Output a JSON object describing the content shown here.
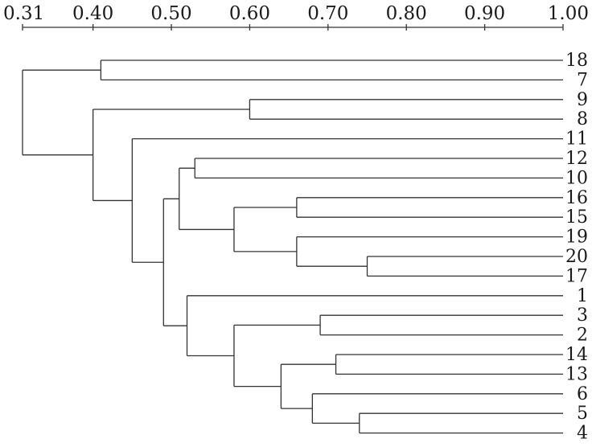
{
  "scale": {
    "ticks": [
      "0.31",
      "0.40",
      "0.50",
      "0.60",
      "0.70",
      "0.80",
      "0.90",
      "1.00"
    ],
    "tick_values": [
      0.31,
      0.4,
      0.5,
      0.6,
      0.7,
      0.8,
      0.9,
      1.0
    ]
  },
  "leaves": [
    "18",
    "7",
    "9",
    "8",
    "11",
    "12",
    "10",
    "16",
    "15",
    "19",
    "20",
    "17",
    "1",
    "3",
    "2",
    "14",
    "13",
    "6",
    "5",
    "4"
  ],
  "merges": [
    {
      "a": "18",
      "b": "7",
      "level": 0.41
    },
    {
      "a": "9",
      "b": "8",
      "level": 0.6
    },
    {
      "a": "12",
      "b": "10",
      "level": 0.53
    },
    {
      "a": "16",
      "b": "15",
      "level": 0.66
    },
    {
      "a": "20",
      "b": "17",
      "level": 0.75
    },
    {
      "a": "19",
      "b": "M5",
      "level": 0.66
    },
    {
      "a": "M4",
      "b": "M6",
      "level": 0.58
    },
    {
      "a": "M3",
      "b": "M7",
      "level": 0.51
    },
    {
      "a": "3",
      "b": "2",
      "level": 0.69
    },
    {
      "a": "14",
      "b": "13",
      "level": 0.71
    },
    {
      "a": "5",
      "b": "4",
      "level": 0.74
    },
    {
      "a": "6",
      "b": "M11",
      "level": 0.68
    },
    {
      "a": "M10",
      "b": "M12",
      "level": 0.64
    },
    {
      "a": "M9",
      "b": "M13",
      "level": 0.58
    },
    {
      "a": "1",
      "b": "M14",
      "level": 0.52
    },
    {
      "a": "M8",
      "b": "M15",
      "level": 0.49
    },
    {
      "a": "11",
      "b": "M16",
      "level": 0.45
    },
    {
      "a": "M2",
      "b": "M17",
      "level": 0.4
    },
    {
      "a": "M1",
      "b": "M18",
      "level": 0.31
    }
  ]
}
